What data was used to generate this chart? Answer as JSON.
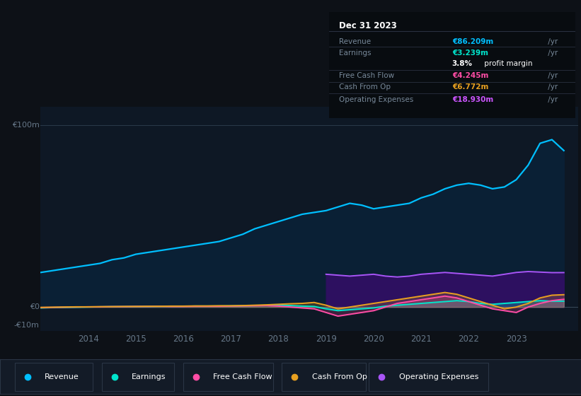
{
  "bg_color": "#0d1117",
  "chart_bg": "#0e1825",
  "title_box_bg": "#080c10",
  "years_x": [
    2013.0,
    2013.25,
    2013.5,
    2013.75,
    2014.0,
    2014.25,
    2014.5,
    2014.75,
    2015.0,
    2015.25,
    2015.5,
    2015.75,
    2016.0,
    2016.25,
    2016.5,
    2016.75,
    2017.0,
    2017.25,
    2017.5,
    2017.75,
    2018.0,
    2018.25,
    2018.5,
    2018.75,
    2019.0,
    2019.25,
    2019.5,
    2019.75,
    2020.0,
    2020.25,
    2020.5,
    2020.75,
    2021.0,
    2021.25,
    2021.5,
    2021.75,
    2022.0,
    2022.25,
    2022.5,
    2022.75,
    2023.0,
    2023.25,
    2023.5,
    2023.75,
    2024.0
  ],
  "revenue": [
    19,
    20,
    21,
    22,
    23,
    24,
    26,
    27,
    29,
    30,
    31,
    32,
    33,
    34,
    35,
    36,
    38,
    40,
    43,
    45,
    47,
    49,
    51,
    52,
    53,
    55,
    57,
    56,
    54,
    55,
    56,
    57,
    60,
    62,
    65,
    67,
    68,
    67,
    65,
    66,
    70,
    78,
    90,
    92,
    86
  ],
  "earnings": [
    -0.5,
    -0.3,
    -0.2,
    -0.1,
    0.0,
    0.1,
    0.2,
    0.2,
    0.3,
    0.3,
    0.4,
    0.4,
    0.4,
    0.5,
    0.5,
    0.5,
    0.6,
    0.7,
    0.8,
    0.9,
    1.0,
    0.8,
    0.5,
    0.3,
    -1.0,
    -2.0,
    -1.5,
    -1.0,
    -0.5,
    0.5,
    1.0,
    1.5,
    2.0,
    2.5,
    3.0,
    3.5,
    3.0,
    2.0,
    1.5,
    2.0,
    2.5,
    3.0,
    3.5,
    3.2,
    3.239
  ],
  "free_cash_flow": [
    -0.3,
    -0.2,
    -0.1,
    0.0,
    0.1,
    0.1,
    0.2,
    0.2,
    0.3,
    0.3,
    0.4,
    0.3,
    0.3,
    0.4,
    0.4,
    0.4,
    0.5,
    0.6,
    0.7,
    0.8,
    0.5,
    0.0,
    -0.5,
    -1.0,
    -3.0,
    -5.0,
    -4.0,
    -3.0,
    -2.0,
    0.0,
    2.0,
    3.0,
    4.0,
    5.0,
    6.0,
    5.0,
    3.0,
    1.0,
    -1.0,
    -2.0,
    -3.0,
    0.0,
    2.0,
    3.5,
    4.245
  ],
  "cash_from_op": [
    -0.2,
    -0.1,
    0.0,
    0.1,
    0.1,
    0.2,
    0.2,
    0.3,
    0.3,
    0.4,
    0.4,
    0.5,
    0.5,
    0.6,
    0.6,
    0.7,
    0.7,
    0.8,
    1.0,
    1.2,
    1.5,
    1.8,
    2.0,
    2.5,
    1.0,
    -1.0,
    0.0,
    1.0,
    2.0,
    3.0,
    4.0,
    5.0,
    6.0,
    7.0,
    8.0,
    7.0,
    5.0,
    3.0,
    1.0,
    -1.0,
    0.0,
    2.0,
    5.0,
    6.5,
    6.772
  ],
  "operating_expenses": [
    null,
    null,
    null,
    null,
    null,
    null,
    null,
    null,
    null,
    null,
    null,
    null,
    null,
    null,
    null,
    null,
    null,
    null,
    null,
    null,
    null,
    null,
    null,
    null,
    18.0,
    17.5,
    17.0,
    17.5,
    18.0,
    17.0,
    16.5,
    17.0,
    18.0,
    18.5,
    19.0,
    18.5,
    18.0,
    17.5,
    17.0,
    18.0,
    19.0,
    19.5,
    19.2,
    18.9,
    18.93
  ],
  "revenue_color": "#00bfff",
  "earnings_color": "#00e5cc",
  "fcf_color": "#ff4da6",
  "cashop_color": "#e8a020",
  "opex_color": "#a855f7",
  "revenue_fill": "#0a2035",
  "opex_fill": "#2d1060",
  "ylim_min": -13,
  "ylim_max": 110,
  "xticks": [
    2014,
    2015,
    2016,
    2017,
    2018,
    2019,
    2020,
    2021,
    2022,
    2023
  ],
  "legend_items": [
    {
      "label": "Revenue",
      "color": "#00bfff"
    },
    {
      "label": "Earnings",
      "color": "#00e5cc"
    },
    {
      "label": "Free Cash Flow",
      "color": "#ff4da6"
    },
    {
      "label": "Cash From Op",
      "color": "#e8a020"
    },
    {
      "label": "Operating Expenses",
      "color": "#a855f7"
    }
  ],
  "info_box": {
    "title": "Dec 31 2023",
    "rows": [
      {
        "label": "Revenue",
        "value": "€86.209m",
        "unit": " /yr",
        "value_color": "#00bfff"
      },
      {
        "label": "Earnings",
        "value": "€3.239m",
        "unit": " /yr",
        "value_color": "#00e5cc"
      },
      {
        "label": "",
        "value": "3.8%",
        "unit": " profit margin",
        "value_color": "#ffffff"
      },
      {
        "label": "Free Cash Flow",
        "value": "€4.245m",
        "unit": " /yr",
        "value_color": "#ff4da6"
      },
      {
        "label": "Cash From Op",
        "value": "€6.772m",
        "unit": " /yr",
        "value_color": "#e8a020"
      },
      {
        "label": "Operating Expenses",
        "value": "€18.930m",
        "unit": " /yr",
        "value_color": "#cc55ff"
      }
    ]
  }
}
